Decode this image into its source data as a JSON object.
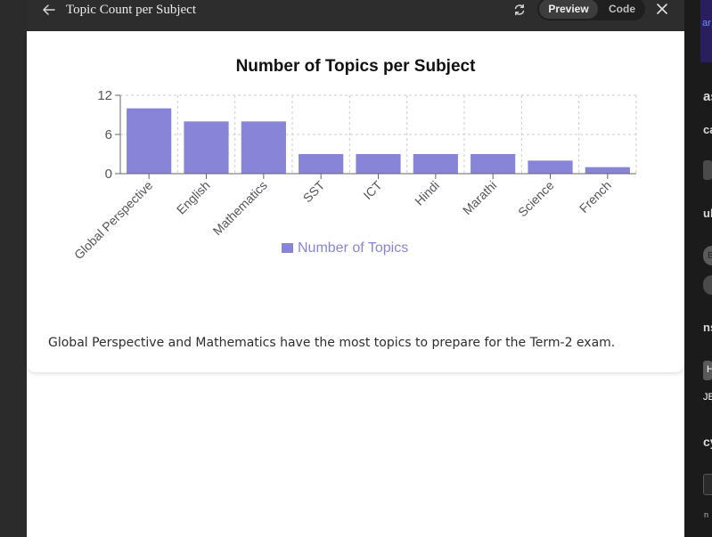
{
  "header": {
    "title": "Topic Count per Subject",
    "preview_label": "Preview",
    "code_label": "Code"
  },
  "chart_data": {
    "type": "bar",
    "title": "Number of Topics per Subject",
    "categories": [
      "Global Perspective",
      "English",
      "Mathematics",
      "SST",
      "ICT",
      "Hindi",
      "Marathi",
      "Science",
      "French"
    ],
    "series": [
      {
        "name": "Number of Topics",
        "values": [
          10,
          8,
          8,
          3,
          3,
          3,
          3,
          2,
          1
        ]
      }
    ],
    "yticks": [
      "12",
      "6",
      "0"
    ],
    "ylim": [
      0,
      12
    ],
    "grid": true,
    "legend": "bottom",
    "bar_color": "#8884d8"
  },
  "summary": "Global Perspective and Mathematics have the most topics to prepare for the Term-2 exam.",
  "background_right": {
    "snippets": [
      "as",
      "ca",
      "ub",
      "B",
      "ns",
      "H",
      "JE",
      "cy",
      "n"
    ]
  }
}
